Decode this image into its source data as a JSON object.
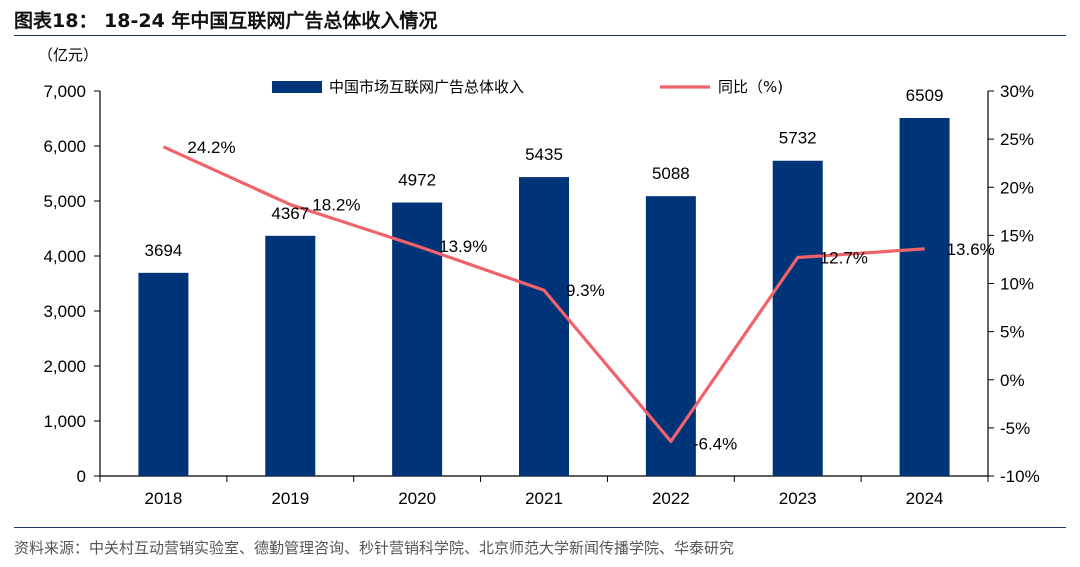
{
  "figure": {
    "title": "图表18： 18-24 年中国互联网广告总体收入情况",
    "source": "资料来源：中关村互动营销实验室、德勤管理咨询、秒针营销科学院、北京师范大学新闻传播学院、华泰研究"
  },
  "colors": {
    "bar": "#003478",
    "line": "#F0636A",
    "axis": "#000000"
  },
  "chart_data": {
    "type": "bar",
    "categories": [
      "2018",
      "2019",
      "2020",
      "2021",
      "2022",
      "2023",
      "2024"
    ],
    "series": [
      {
        "name": "中国市场互联网广告总体收入",
        "type": "bar",
        "axis": "left",
        "values": [
          3694,
          4367,
          4972,
          5435,
          5088,
          5732,
          6509
        ],
        "labels": [
          "3694",
          "4367",
          "4972",
          "5435",
          "5088",
          "5732",
          "6509"
        ]
      },
      {
        "name": "同比（%)",
        "type": "line",
        "axis": "right",
        "values": [
          24.2,
          18.2,
          13.9,
          9.3,
          -6.4,
          12.7,
          13.6
        ],
        "labels": [
          "24.2%",
          "18.2%",
          "13.9%",
          "9.3%",
          "-6.4%",
          "12.7%",
          "13.6%"
        ]
      }
    ],
    "y_left": {
      "unit": "（亿元）",
      "ylim": [
        0,
        7000
      ],
      "ticks": [
        0,
        1000,
        2000,
        3000,
        4000,
        5000,
        6000,
        7000
      ],
      "tick_labels": [
        "0",
        "1,000",
        "2,000",
        "3,000",
        "4,000",
        "5,000",
        "6,000",
        "7,000"
      ]
    },
    "y_right": {
      "ylim": [
        -10,
        30
      ],
      "ticks": [
        -10,
        -5,
        0,
        5,
        10,
        15,
        20,
        25,
        30
      ],
      "tick_labels": [
        "-10%",
        "-5%",
        "0%",
        "5%",
        "10%",
        "15%",
        "20%",
        "25%",
        "30%"
      ]
    },
    "legend_position": "top",
    "grid": false
  }
}
